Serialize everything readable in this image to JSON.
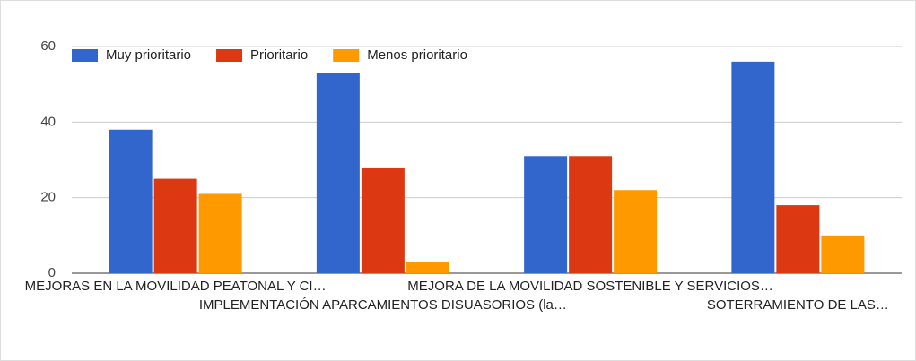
{
  "chart_data": {
    "type": "bar",
    "categories": [
      "MEJORAS EN LA MOVILIDAD PEATONAL Y CI…",
      "IMPLEMENTACIÓN APARCAMIENTOS DISUASORIOS (la…",
      "MEJORA DE LA MOVILIDAD SOSTENIBLE Y SERVICIOS…",
      "SOTERRAMIENTO DE LAS…"
    ],
    "series": [
      {
        "name": "Muy prioritario",
        "color": "#3366cc",
        "values": [
          38,
          53,
          31,
          56
        ]
      },
      {
        "name": "Prioritario",
        "color": "#dc3912",
        "values": [
          25,
          28,
          31,
          18
        ]
      },
      {
        "name": "Menos prioritario",
        "color": "#ff9900",
        "values": [
          21,
          3,
          22,
          10
        ]
      }
    ],
    "ylim": [
      0,
      60
    ],
    "yticks": [
      0,
      20,
      40,
      60
    ],
    "grid": true,
    "legend": "top"
  }
}
